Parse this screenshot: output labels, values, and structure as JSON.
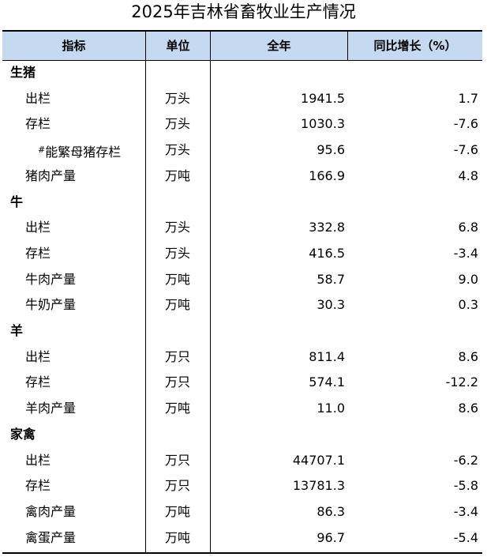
{
  "title": "2025年吉林省畜牧业生产情况",
  "header": {
    "indicator": "指标",
    "unit": "单位",
    "year": "全年",
    "yoy": "同比增长（%）"
  },
  "rows": [
    {
      "indicator": "生猪",
      "unit": "",
      "year": "",
      "yoy": ""
    },
    {
      "indicator": "出栏",
      "unit": "万头",
      "year": "1941.5",
      "yoy": "1.7"
    },
    {
      "indicator": "存栏",
      "unit": "万头",
      "year": "1030.3",
      "yoy": "-7.6"
    },
    {
      "indicator": "#能繁母猪存栏",
      "unit": "万头",
      "year": "95.6",
      "yoy": "-7.6"
    },
    {
      "indicator": "猪肉产量",
      "unit": "万吨",
      "year": "166.9",
      "yoy": "4.8"
    },
    {
      "indicator": "牛",
      "unit": "",
      "year": "",
      "yoy": ""
    },
    {
      "indicator": "出栏",
      "unit": "万头",
      "year": "332.8",
      "yoy": "6.8"
    },
    {
      "indicator": "存栏",
      "unit": "万头",
      "year": "416.5",
      "yoy": "-3.4"
    },
    {
      "indicator": "牛肉产量",
      "unit": "万吨",
      "year": "58.7",
      "yoy": "9.0"
    },
    {
      "indicator": "牛奶产量",
      "unit": "万吨",
      "year": "30.3",
      "yoy": "0.3"
    },
    {
      "indicator": "羊",
      "unit": "",
      "year": "",
      "yoy": ""
    },
    {
      "indicator": "出栏",
      "unit": "万只",
      "year": "811.4",
      "yoy": "8.6"
    },
    {
      "indicator": "存栏",
      "unit": "万只",
      "year": "574.1",
      "yoy": "-12.2"
    },
    {
      "indicator": "羊肉产量",
      "unit": "万吨",
      "year": "11.0",
      "yoy": "8.6"
    },
    {
      "indicator": "家禽",
      "unit": "",
      "year": "",
      "yoy": ""
    },
    {
      "indicator": "出栏",
      "unit": "万只",
      "year": "44707.1",
      "yoy": "-6.2"
    },
    {
      "indicator": "存栏",
      "unit": "万只",
      "year": "13781.3",
      "yoy": "-5.8"
    },
    {
      "indicator": "禽肉产量",
      "unit": "万吨",
      "year": "86.3",
      "yoy": "-3.4"
    },
    {
      "indicator": "禽蛋产量",
      "unit": "万吨",
      "year": "96.7",
      "yoy": "-5.4"
    }
  ]
}
